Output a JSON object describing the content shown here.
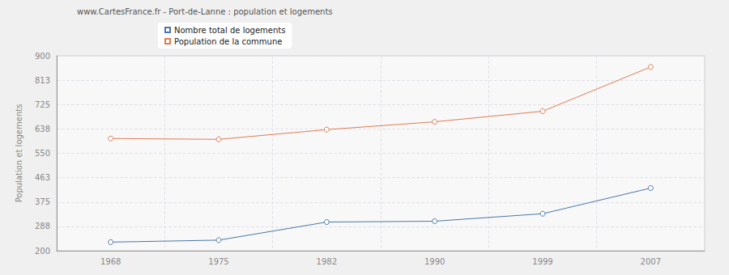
{
  "chart_data": {
    "type": "line",
    "title": "www.CartesFrance.fr - Port-de-Lanne : population et logements",
    "y_label": "Population et logements",
    "categories": [
      "1968",
      "1975",
      "1982",
      "1990",
      "1999",
      "2007"
    ],
    "series": [
      {
        "name": "Nombre total de logements",
        "color": "#4a77a8",
        "values": [
          231,
          238,
          303,
          306,
          333,
          425
        ]
      },
      {
        "name": "Population de la commune",
        "color": "#e07b54",
        "values": [
          603,
          600,
          635,
          663,
          701,
          860
        ]
      }
    ],
    "ylim": [
      200,
      900
    ],
    "yticks": [
      200,
      {
        "value": 287.5,
        "label": "288"
      },
      375,
      {
        "value": 462.5,
        "label": "463"
      },
      550,
      {
        "value": 637.5,
        "label": "638"
      },
      725,
      {
        "value": 812.5,
        "label": "813"
      },
      900
    ],
    "grid": true,
    "legend": "top-left",
    "marker": "circle"
  }
}
